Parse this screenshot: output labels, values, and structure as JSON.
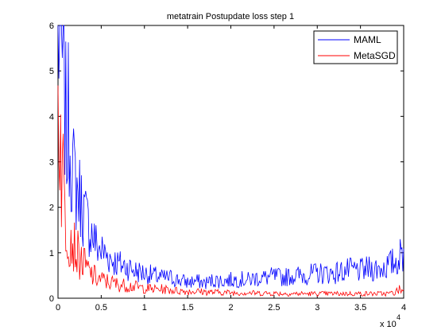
{
  "chart_data": {
    "type": "line",
    "title": "metatrain Postupdate loss step 1",
    "xlabel": "",
    "ylabel": "",
    "xlim": [
      0,
      40000
    ],
    "ylim": [
      0,
      6
    ],
    "x_ticks": [
      0,
      5000,
      10000,
      15000,
      20000,
      25000,
      30000,
      35000,
      40000
    ],
    "x_tick_labels": [
      "0",
      "0.5",
      "1",
      "1.5",
      "2",
      "2.5",
      "3",
      "3.5",
      "4"
    ],
    "x_multiplier": {
      "base": "x 10",
      "exponent": "4"
    },
    "y_ticks": [
      0,
      1,
      2,
      3,
      4,
      5,
      6
    ],
    "y_tick_labels": [
      "0",
      "1",
      "2",
      "3",
      "4",
      "5",
      "6"
    ],
    "grid": false,
    "legend_position": "top-right",
    "series": [
      {
        "name": "MAML",
        "color": "#0000ff",
        "x": [
          0,
          200,
          400,
          600,
          800,
          1000,
          1200,
          1500,
          1800,
          2200,
          2600,
          3000,
          3500,
          4000,
          4500,
          5000,
          6000,
          7000,
          8000,
          9000,
          10000,
          11000,
          12000,
          13000,
          14000,
          15000,
          16000,
          17000,
          18000,
          19000,
          20000,
          21000,
          22000,
          23000,
          24000,
          25000,
          26000,
          27000,
          28000,
          29000,
          30000,
          31000,
          32000,
          33000,
          34000,
          35000,
          36000,
          37000,
          38000,
          39000,
          39500,
          40000
        ],
        "y": [
          6.0,
          5.8,
          5.5,
          4.8,
          4.4,
          3.4,
          3.9,
          3.3,
          2.7,
          2.4,
          2.2,
          1.9,
          1.6,
          1.4,
          1.15,
          1.05,
          0.9,
          0.75,
          0.7,
          0.6,
          0.55,
          0.5,
          0.45,
          0.45,
          0.4,
          0.35,
          0.38,
          0.33,
          0.4,
          0.38,
          0.4,
          0.42,
          0.4,
          0.45,
          0.45,
          0.48,
          0.45,
          0.5,
          0.5,
          0.52,
          0.55,
          0.55,
          0.55,
          0.6,
          0.62,
          0.6,
          0.65,
          0.65,
          0.7,
          0.8,
          0.9,
          1.0
        ]
      },
      {
        "name": "MetaSGD",
        "color": "#ff0000",
        "x": [
          0,
          200,
          400,
          600,
          800,
          1000,
          1200,
          1500,
          1800,
          2200,
          2600,
          3000,
          3500,
          4000,
          4500,
          5000,
          6000,
          7000,
          8000,
          9000,
          10000,
          11000,
          12000,
          13000,
          14000,
          15000,
          16000,
          17000,
          18000,
          19000,
          20000,
          21000,
          22000,
          23000,
          24000,
          25000,
          26000,
          27000,
          28000,
          29000,
          30000,
          31000,
          32000,
          33000,
          34000,
          35000,
          36000,
          37000,
          38000,
          39000,
          39500,
          40000
        ],
        "y": [
          4.9,
          4.0,
          3.0,
          2.6,
          2.0,
          1.5,
          1.6,
          1.4,
          1.2,
          1.0,
          0.85,
          0.75,
          0.6,
          0.5,
          0.45,
          0.4,
          0.35,
          0.3,
          0.28,
          0.25,
          0.22,
          0.2,
          0.2,
          0.18,
          0.16,
          0.15,
          0.15,
          0.14,
          0.13,
          0.13,
          0.12,
          0.12,
          0.12,
          0.11,
          0.11,
          0.11,
          0.1,
          0.1,
          0.1,
          0.1,
          0.1,
          0.1,
          0.1,
          0.1,
          0.1,
          0.1,
          0.1,
          0.1,
          0.1,
          0.12,
          0.2,
          0.15
        ]
      }
    ]
  }
}
